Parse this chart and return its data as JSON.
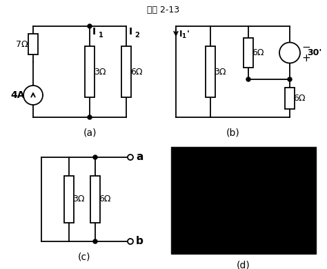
{
  "title": "题图 2-13",
  "title_fontsize": 9,
  "background_color": "#ffffff",
  "label_a": "(a)",
  "label_b": "(b)",
  "label_c": "(c)",
  "label_d": "(d)",
  "text_color": "#000000"
}
